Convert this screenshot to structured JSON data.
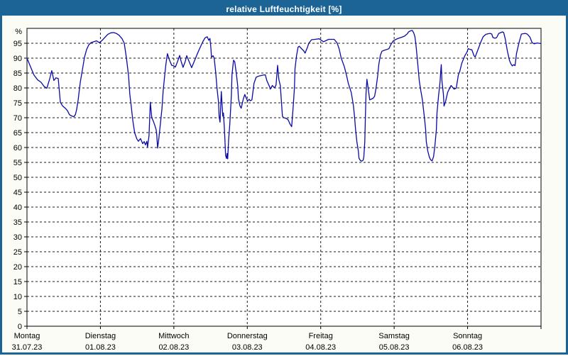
{
  "window": {
    "title": "relative Luftfeuchtigkeit [%]"
  },
  "colors": {
    "titlebar": "#1d6496",
    "page_background": "#fcfcf6",
    "plot_background": "#ffffff",
    "line": "#0a0aa8",
    "grid": "#1a1a1a",
    "frame": "#000000"
  },
  "chart_data": {
    "type": "line",
    "title": "relative Luftfeuchtigkeit [%]",
    "ylabel": "%",
    "ylim": [
      0,
      100
    ],
    "y_tick_step": 5,
    "y_unit_label": "%",
    "grid": "dashed",
    "legend": "none",
    "x_axis": {
      "unit": "hours",
      "total_hours": 168,
      "day_labels": [
        {
          "day": "Montag",
          "date": "31.07.23"
        },
        {
          "day": "Dienstag",
          "date": "01.08.23"
        },
        {
          "day": "Mittwoch",
          "date": "02.08.23"
        },
        {
          "day": "Donnerstag",
          "date": "03.08.23"
        },
        {
          "day": "Freitag",
          "date": "04.08.23"
        },
        {
          "day": "Samstag",
          "date": "05.08.23"
        },
        {
          "day": "Sonntag",
          "date": "06.08.23"
        }
      ]
    },
    "series": [
      {
        "name": "relative Luftfeuchtigkeit",
        "points": [
          [
            0,
            90
          ],
          [
            1.2,
            87
          ],
          [
            2.3,
            84.3
          ],
          [
            3.5,
            82.7
          ],
          [
            4.6,
            81.9
          ],
          [
            5.6,
            80.5
          ],
          [
            6.5,
            79.9
          ],
          [
            7.4,
            83
          ],
          [
            8.1,
            85.8
          ],
          [
            8.8,
            82.5
          ],
          [
            9.5,
            83.4
          ],
          [
            10.2,
            83.2
          ],
          [
            10.9,
            75.2
          ],
          [
            11.6,
            74
          ],
          [
            12.5,
            73.2
          ],
          [
            13.2,
            72.4
          ],
          [
            13.9,
            71
          ],
          [
            14.6,
            70.6
          ],
          [
            15.3,
            70.3
          ],
          [
            15.8,
            71
          ],
          [
            16.2,
            72.6
          ],
          [
            16.7,
            75.8
          ],
          [
            17.4,
            81.8
          ],
          [
            18.1,
            86
          ],
          [
            18.8,
            90.3
          ],
          [
            19.5,
            92.9
          ],
          [
            20.2,
            94.5
          ],
          [
            20.9,
            95.2
          ],
          [
            21.8,
            95.5
          ],
          [
            22.7,
            95.8
          ],
          [
            23.7,
            95.2
          ],
          [
            24.6,
            96
          ],
          [
            25.5,
            97
          ],
          [
            26.4,
            98
          ],
          [
            27.4,
            98.5
          ],
          [
            28.3,
            98.6
          ],
          [
            29.2,
            98.3
          ],
          [
            30.1,
            97.7
          ],
          [
            31.1,
            96.5
          ],
          [
            31.8,
            95
          ],
          [
            32.5,
            90
          ],
          [
            33.2,
            84
          ],
          [
            33.6,
            78
          ],
          [
            34.1,
            73.5
          ],
          [
            34.6,
            69
          ],
          [
            35.2,
            64.9
          ],
          [
            35.9,
            62.9
          ],
          [
            36.4,
            62.1
          ],
          [
            37.1,
            63
          ],
          [
            37.8,
            61.3
          ],
          [
            38.3,
            62
          ],
          [
            38.7,
            60.9
          ],
          [
            39.2,
            62.1
          ],
          [
            39.4,
            60.1
          ],
          [
            39.9,
            64
          ],
          [
            40.3,
            75.2
          ],
          [
            40.8,
            70
          ],
          [
            41.3,
            68.8
          ],
          [
            41.7,
            67.7
          ],
          [
            42.2,
            66
          ],
          [
            42.4,
            64.5
          ],
          [
            42.7,
            59.8
          ],
          [
            43.1,
            63
          ],
          [
            43.6,
            68
          ],
          [
            44.1,
            73
          ],
          [
            44.5,
            79
          ],
          [
            45,
            84
          ],
          [
            45.4,
            88
          ],
          [
            45.9,
            91.5
          ],
          [
            46.6,
            89.3
          ],
          [
            47.3,
            87.6
          ],
          [
            48,
            87.4
          ],
          [
            48.5,
            87
          ],
          [
            49.2,
            88.8
          ],
          [
            49.9,
            90.9
          ],
          [
            50.3,
            89.2
          ],
          [
            51,
            86.9
          ],
          [
            51.7,
            88.8
          ],
          [
            52.2,
            90.8
          ],
          [
            53.1,
            88.6
          ],
          [
            53.8,
            86.8
          ],
          [
            54.7,
            89
          ],
          [
            55.7,
            91.5
          ],
          [
            56.6,
            93.6
          ],
          [
            57.5,
            95.6
          ],
          [
            58.2,
            96.8
          ],
          [
            58.9,
            97.2
          ],
          [
            59.4,
            96
          ],
          [
            59.8,
            96.6
          ],
          [
            60.1,
            93.5
          ],
          [
            60.3,
            90.3
          ],
          [
            60.8,
            90.8
          ],
          [
            61.2,
            90
          ],
          [
            61.7,
            85
          ],
          [
            62.1,
            80
          ],
          [
            62.6,
            75.2
          ],
          [
            62.8,
            70.5
          ],
          [
            63.1,
            68.5
          ],
          [
            63.5,
            78.8
          ],
          [
            64,
            70.5
          ],
          [
            64.2,
            71.6
          ],
          [
            64.5,
            66.5
          ],
          [
            64.7,
            62.6
          ],
          [
            64.9,
            57.4
          ],
          [
            65.2,
            56.3
          ],
          [
            65.4,
            58
          ],
          [
            65.6,
            56.2
          ],
          [
            65.9,
            62.6
          ],
          [
            66.3,
            68
          ],
          [
            66.8,
            77.6
          ],
          [
            67,
            84.3
          ],
          [
            67.5,
            89.3
          ],
          [
            67.9,
            88.8
          ],
          [
            68.4,
            85
          ],
          [
            68.9,
            80.5
          ],
          [
            69.1,
            76.5
          ],
          [
            69.6,
            74
          ],
          [
            70,
            73.2
          ],
          [
            70.7,
            76.3
          ],
          [
            71.2,
            77.8
          ],
          [
            71.7,
            76.5
          ],
          [
            72.1,
            75.6
          ],
          [
            72.6,
            76.2
          ],
          [
            73,
            75.7
          ],
          [
            73.5,
            76
          ],
          [
            74.2,
            81.6
          ],
          [
            74.9,
            83.6
          ],
          [
            75.8,
            84
          ],
          [
            77.2,
            84.3
          ],
          [
            77.9,
            84.4
          ],
          [
            78.4,
            82.4
          ],
          [
            79.3,
            80.4
          ],
          [
            79.5,
            79.6
          ],
          [
            80.2,
            80.8
          ],
          [
            80.9,
            80
          ],
          [
            81.4,
            81
          ],
          [
            81.9,
            87.6
          ],
          [
            82.3,
            82.9
          ],
          [
            82.8,
            80.8
          ],
          [
            83.5,
            70.5
          ],
          [
            83.9,
            70
          ],
          [
            84.6,
            69.8
          ],
          [
            85.3,
            69.4
          ],
          [
            86,
            67.8
          ],
          [
            86.5,
            67
          ],
          [
            87,
            73.6
          ],
          [
            87.4,
            80
          ],
          [
            87.6,
            86.4
          ],
          [
            88.1,
            90.9
          ],
          [
            88.6,
            93.7
          ],
          [
            89,
            94
          ],
          [
            89.7,
            93.2
          ],
          [
            90.4,
            92.5
          ],
          [
            90.9,
            91.7
          ],
          [
            91.6,
            93.5
          ],
          [
            92.1,
            95
          ],
          [
            93,
            96.2
          ],
          [
            94.1,
            96.3
          ],
          [
            95.5,
            96.5
          ],
          [
            96.9,
            95.5
          ],
          [
            98.6,
            96.3
          ],
          [
            100.4,
            96.3
          ],
          [
            101.3,
            95.2
          ],
          [
            102,
            93.2
          ],
          [
            102.7,
            90
          ],
          [
            103.7,
            87.2
          ],
          [
            104.4,
            84.4
          ],
          [
            105,
            81.6
          ],
          [
            106,
            78.4
          ],
          [
            106.7,
            74
          ],
          [
            107.1,
            70
          ],
          [
            107.4,
            66
          ],
          [
            107.8,
            62
          ],
          [
            108.3,
            58.8
          ],
          [
            108.5,
            56.4
          ],
          [
            109,
            55.6
          ],
          [
            109.4,
            55.4
          ],
          [
            109.9,
            55.8
          ],
          [
            110.1,
            57
          ],
          [
            110.4,
            62
          ],
          [
            110.6,
            70
          ],
          [
            110.8,
            78
          ],
          [
            111.1,
            82.9
          ],
          [
            111.5,
            80
          ],
          [
            112,
            76
          ],
          [
            112.7,
            76.3
          ],
          [
            113.2,
            76.6
          ],
          [
            113.6,
            77.2
          ],
          [
            114.1,
            80
          ],
          [
            114.6,
            84
          ],
          [
            115,
            88
          ],
          [
            115.5,
            91
          ],
          [
            116,
            92.3
          ],
          [
            116.6,
            92.6
          ],
          [
            117.6,
            92.9
          ],
          [
            118.3,
            93.2
          ],
          [
            119,
            94.7
          ],
          [
            119.7,
            95.8
          ],
          [
            120.6,
            96.3
          ],
          [
            121.5,
            96.7
          ],
          [
            122.4,
            97
          ],
          [
            123.4,
            97.4
          ],
          [
            124.3,
            98.2
          ],
          [
            124.7,
            98.8
          ],
          [
            125.4,
            99.2
          ],
          [
            125.9,
            99.3
          ],
          [
            126.4,
            98.5
          ],
          [
            126.8,
            97.2
          ],
          [
            127.1,
            94.8
          ],
          [
            127.5,
            90.4
          ],
          [
            128.2,
            82.5
          ],
          [
            128.7,
            79.2
          ],
          [
            129.2,
            76.2
          ],
          [
            129.9,
            70
          ],
          [
            130.3,
            66
          ],
          [
            130.5,
            62
          ],
          [
            131,
            58.8
          ],
          [
            131.5,
            56.8
          ],
          [
            131.9,
            55.9
          ],
          [
            132.4,
            55.5
          ],
          [
            132.9,
            57
          ],
          [
            133.3,
            60.5
          ],
          [
            133.8,
            66
          ],
          [
            134,
            71.6
          ],
          [
            134.5,
            77.2
          ],
          [
            135,
            82
          ],
          [
            135.2,
            85.2
          ],
          [
            135.4,
            87.8
          ],
          [
            135.6,
            82.5
          ],
          [
            136.1,
            77.9
          ],
          [
            136.3,
            73.9
          ],
          [
            136.8,
            75.4
          ],
          [
            137.5,
            78.6
          ],
          [
            138.4,
            80.4
          ],
          [
            138.6,
            80.8
          ],
          [
            139.6,
            79.6
          ],
          [
            140.3,
            79.9
          ],
          [
            141,
            84.4
          ],
          [
            141.4,
            85.4
          ],
          [
            142.1,
            88.3
          ],
          [
            143.1,
            90.8
          ],
          [
            143.8,
            92
          ],
          [
            144.2,
            93.2
          ],
          [
            144.9,
            92.9
          ],
          [
            145.4,
            92.8
          ],
          [
            146.1,
            90.8
          ],
          [
            146.5,
            90.4
          ],
          [
            147.7,
            93.7
          ],
          [
            148.4,
            95.6
          ],
          [
            149.1,
            97.2
          ],
          [
            150,
            98
          ],
          [
            150.7,
            98.2
          ],
          [
            151.4,
            98.3
          ],
          [
            151.9,
            98.1
          ],
          [
            152.3,
            96.9
          ],
          [
            153,
            96.7
          ],
          [
            153.5,
            96.9
          ],
          [
            154.2,
            98.3
          ],
          [
            154.9,
            98.6
          ],
          [
            155.4,
            98.8
          ],
          [
            155.8,
            98.6
          ],
          [
            156.3,
            96.5
          ],
          [
            157,
            92.4
          ],
          [
            157.7,
            89.2
          ],
          [
            158.2,
            88
          ],
          [
            158.6,
            87.4
          ],
          [
            159.1,
            87.8
          ],
          [
            159.5,
            87.5
          ],
          [
            160,
            91.6
          ],
          [
            160.9,
            95.6
          ],
          [
            161.6,
            98.1
          ],
          [
            162.8,
            98.3
          ],
          [
            163.5,
            98.1
          ],
          [
            164.4,
            97
          ],
          [
            165.1,
            95.2
          ],
          [
            165.8,
            94.8
          ],
          [
            166.7,
            95.1
          ],
          [
            167.9,
            94.9
          ]
        ]
      }
    ]
  }
}
